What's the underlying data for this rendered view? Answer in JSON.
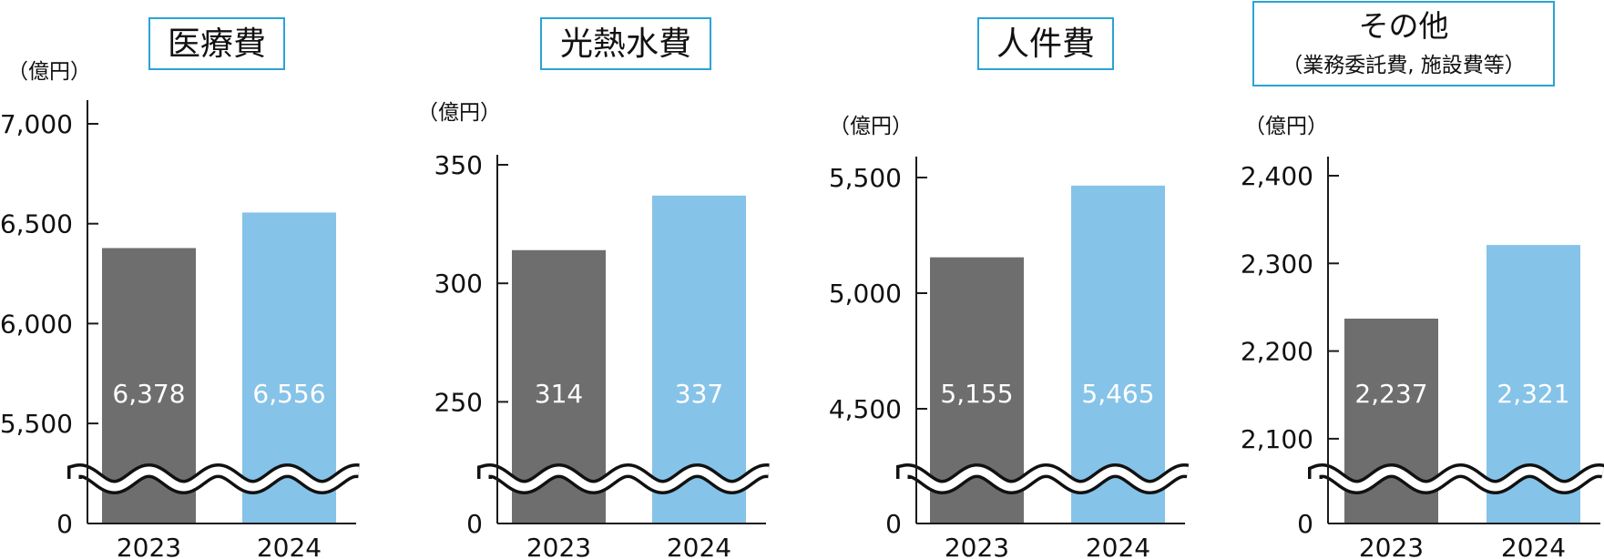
{
  "unit_label": "（億円）",
  "colors": {
    "y2023": "#6e6e6e",
    "y2024": "#86c3e8",
    "frame": "#2aa3d6",
    "axis": "#1a1a1a"
  },
  "chart_data": [
    {
      "type": "bar",
      "title": "医療費",
      "subtitle": "",
      "categories": [
        "2023",
        "2024"
      ],
      "values": [
        6378,
        6556
      ],
      "value_labels": [
        "6,378",
        "6,556"
      ],
      "ylabel": "（億円）",
      "ylim": [
        5000,
        7000
      ],
      "yticks": [
        5500,
        6000,
        6500,
        7000
      ],
      "ytick_labels": [
        "5,500",
        "6,000",
        "6,500",
        "7,000"
      ],
      "broken_axis": true,
      "zero_label": "0"
    },
    {
      "type": "bar",
      "title": "光熱水費",
      "subtitle": "",
      "categories": [
        "2023",
        "2024"
      ],
      "values": [
        314,
        337
      ],
      "value_labels": [
        "314",
        "337"
      ],
      "ylabel": "（億円）",
      "ylim": [
        200,
        350
      ],
      "yticks": [
        250,
        300,
        350
      ],
      "ytick_labels": [
        "250",
        "300",
        "350"
      ],
      "broken_axis": true,
      "zero_label": "0"
    },
    {
      "type": "bar",
      "title": "人件費",
      "subtitle": "",
      "categories": [
        "2023",
        "2024"
      ],
      "values": [
        5155,
        5465
      ],
      "value_labels": [
        "5,155",
        "5,465"
      ],
      "ylabel": "（億円）",
      "ylim": [
        4000,
        5500
      ],
      "yticks": [
        4500,
        5000,
        5500
      ],
      "ytick_labels": [
        "4,500",
        "5,000",
        "5,500"
      ],
      "broken_axis": true,
      "zero_label": "0"
    },
    {
      "type": "bar",
      "title": "その他",
      "subtitle": "（業務委託費, 施設費等）",
      "categories": [
        "2023",
        "2024"
      ],
      "values": [
        2237,
        2321
      ],
      "value_labels": [
        "2,237",
        "2,321"
      ],
      "ylabel": "（億円）",
      "ylim": [
        2000,
        2400
      ],
      "yticks": [
        2100,
        2200,
        2300,
        2400
      ],
      "ytick_labels": [
        "2,100",
        "2,200",
        "2,300",
        "2,400"
      ],
      "broken_axis": true,
      "zero_label": "0"
    }
  ]
}
